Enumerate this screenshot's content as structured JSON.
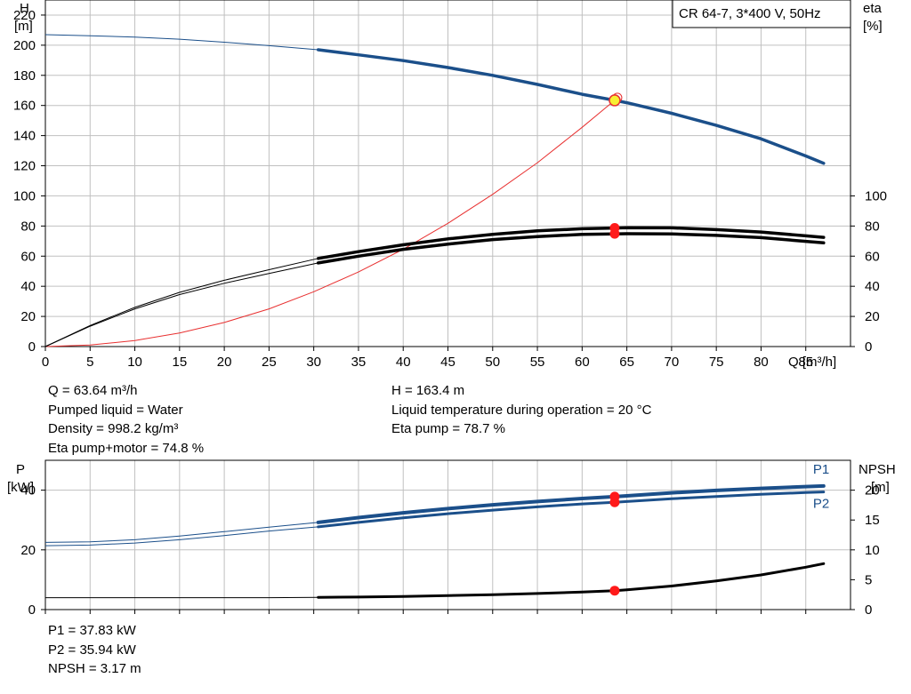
{
  "title": "CR 64-7, 3*400 V, 50Hz",
  "colors": {
    "head": "#1b4f8a",
    "system": "#e83030",
    "efficiency": "#000000",
    "power": "#1b4f8a",
    "npsh": "#000000",
    "marker": "#ff1a1a",
    "duty_marker": "#f7ef33",
    "grid": "#c0c0c0"
  },
  "chart_data": [
    {
      "type": "line",
      "name": "head-efficiency",
      "xlabel": "Q [m³/h]",
      "ylabel_left": [
        "H",
        "[m]"
      ],
      "ylabel_right": [
        "eta",
        "[%]"
      ],
      "xlim": [
        0,
        90
      ],
      "ylim_left": [
        0,
        230
      ],
      "ylim_right": [
        0,
        230
      ],
      "grid": true,
      "x_ticks": [
        0,
        5,
        10,
        15,
        20,
        25,
        30,
        35,
        40,
        45,
        50,
        55,
        60,
        65,
        70,
        75,
        80,
        85
      ],
      "y_ticks_left": [
        0,
        20,
        40,
        60,
        80,
        100,
        120,
        140,
        160,
        180,
        200,
        220
      ],
      "y_ticks_right": [
        0,
        20,
        40,
        60,
        80,
        100
      ],
      "series": [
        {
          "role": "head",
          "axis": "left",
          "x": [
            0,
            5,
            10,
            15,
            20,
            25,
            30.5,
            35,
            40,
            45,
            50,
            55,
            60,
            63.64,
            65,
            70,
            75,
            80,
            85,
            87
          ],
          "y": [
            207,
            206.3,
            205.4,
            204,
            202,
            199.7,
            197,
            193.6,
            189.8,
            185.2,
            180,
            174,
            167.4,
            163.4,
            161.8,
            154.8,
            146.8,
            137.9,
            126.5,
            121.6
          ],
          "solid_from": 30.5
        },
        {
          "role": "system",
          "axis": "left",
          "x": [
            0,
            5,
            10,
            15,
            20,
            25,
            30,
            35,
            40,
            45,
            50,
            55,
            60,
            63.64
          ],
          "y": [
            0,
            1,
            4,
            9,
            16,
            25,
            36.4,
            49.5,
            64.6,
            81.8,
            101,
            122,
            145.5,
            163.4
          ]
        },
        {
          "role": "eta_pump",
          "axis": "right",
          "x": [
            0,
            5,
            10,
            15,
            20,
            25,
            30.5,
            35,
            40,
            45,
            50,
            55,
            60,
            63.64,
            65,
            70,
            75,
            80,
            85,
            87
          ],
          "y": [
            0,
            14,
            26,
            36,
            44,
            51,
            58.5,
            63,
            67.5,
            71.5,
            74.5,
            76.8,
            78.2,
            78.7,
            78.9,
            78.8,
            77.6,
            76,
            73.5,
            72.5
          ],
          "solid_from": 30.5
        },
        {
          "role": "eta_pump_motor",
          "axis": "right",
          "x": [
            0,
            5,
            10,
            15,
            20,
            25,
            30.5,
            35,
            40,
            45,
            50,
            55,
            60,
            63.64,
            65,
            70,
            75,
            80,
            85,
            87
          ],
          "y": [
            0,
            13.5,
            25,
            34.5,
            42,
            48.5,
            55.5,
            60,
            64.5,
            68,
            71,
            73,
            74.4,
            74.8,
            74.9,
            74.8,
            73.8,
            72.3,
            69.8,
            68.8
          ],
          "solid_from": 30.5
        }
      ],
      "duty_points": [
        {
          "x": 63.64,
          "y": 163.4,
          "axis": "left",
          "style": "duty"
        },
        {
          "x": 63.64,
          "y": 78.7,
          "axis": "right",
          "style": "marker"
        },
        {
          "x": 63.64,
          "y": 74.8,
          "axis": "right",
          "style": "marker"
        }
      ]
    },
    {
      "type": "line",
      "name": "power-npsh",
      "ylabel_left": [
        "P",
        "[kW]"
      ],
      "ylabel_right": [
        "NPSH",
        "[m]"
      ],
      "xlim": [
        0,
        90
      ],
      "ylim_left": [
        0,
        50
      ],
      "ylim_right": [
        0,
        25
      ],
      "grid": true,
      "x_ticks": [
        0,
        5,
        10,
        15,
        20,
        25,
        30,
        35,
        40,
        45,
        50,
        55,
        60,
        65,
        70,
        75,
        80,
        85
      ],
      "y_ticks_left": [
        0,
        20,
        40
      ],
      "y_ticks_right": [
        0,
        5,
        10,
        15,
        20
      ],
      "series": [
        {
          "name": "P1",
          "role": "power",
          "axis": "left",
          "x": [
            0,
            5,
            10,
            15,
            20,
            25,
            30.5,
            35,
            40,
            45,
            50,
            55,
            60,
            63.64,
            65,
            70,
            75,
            80,
            85,
            87
          ],
          "y": [
            22.5,
            22.7,
            23.4,
            24.6,
            26.1,
            27.6,
            29.2,
            30.8,
            32.4,
            33.8,
            35.1,
            36.2,
            37.2,
            37.83,
            38.1,
            39.1,
            39.9,
            40.6,
            41.2,
            41.4
          ],
          "solid_from": 30.5
        },
        {
          "name": "P2",
          "role": "power",
          "axis": "left",
          "x": [
            0,
            5,
            10,
            15,
            20,
            25,
            30.5,
            35,
            40,
            45,
            50,
            55,
            60,
            63.64,
            65,
            70,
            75,
            80,
            85,
            87
          ],
          "y": [
            21.4,
            21.6,
            22.3,
            23.4,
            24.8,
            26.3,
            27.7,
            29.2,
            30.7,
            32.1,
            33.3,
            34.4,
            35.4,
            35.94,
            36.2,
            37.1,
            37.9,
            38.6,
            39.2,
            39.4
          ],
          "solid_from": 30.5
        },
        {
          "role": "npsh",
          "axis": "right",
          "x": [
            0,
            5,
            10,
            15,
            20,
            25,
            30.5,
            35,
            40,
            45,
            50,
            55,
            60,
            63.64,
            65,
            70,
            75,
            80,
            85,
            87
          ],
          "y": [
            2,
            2,
            2,
            2,
            2,
            2,
            2.05,
            2.1,
            2.2,
            2.35,
            2.5,
            2.7,
            2.95,
            3.17,
            3.3,
            3.95,
            4.8,
            5.8,
            7.1,
            7.7
          ],
          "solid_from": 30.5
        }
      ],
      "duty_points": [
        {
          "x": 63.64,
          "y": 37.83,
          "axis": "left",
          "style": "marker"
        },
        {
          "x": 63.64,
          "y": 35.94,
          "axis": "left",
          "style": "marker"
        },
        {
          "x": 63.64,
          "y": 3.17,
          "axis": "right",
          "style": "marker"
        }
      ]
    }
  ],
  "info_upper_left": [
    "Q = 63.64 m³/h",
    "Pumped liquid = Water",
    "Density = 998.2 kg/m³",
    "Eta pump+motor = 74.8 %"
  ],
  "info_upper_right": [
    "H = 163.4 m",
    "Liquid temperature during operation = 20 °C",
    "Eta pump = 78.7 %"
  ],
  "info_lower": [
    "P1 = 37.83 kW",
    "P2 = 35.94 kW",
    "NPSH = 3.17 m"
  ]
}
